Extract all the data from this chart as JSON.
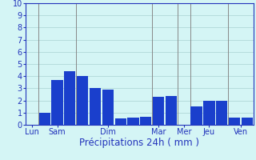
{
  "bars": [
    {
      "day": "Lun",
      "slot": 0,
      "height": 0.0
    },
    {
      "day": "Sam",
      "slot": 1,
      "height": 1.0
    },
    {
      "day": "Sam",
      "slot": 2,
      "height": 3.7
    },
    {
      "day": "Sam",
      "slot": 3,
      "height": 4.4
    },
    {
      "day": "Dim",
      "slot": 4,
      "height": 4.0
    },
    {
      "day": "Dim",
      "slot": 5,
      "height": 3.0
    },
    {
      "day": "Dim",
      "slot": 6,
      "height": 2.9
    },
    {
      "day": "Dim",
      "slot": 7,
      "height": 0.55
    },
    {
      "day": "Dim",
      "slot": 8,
      "height": 0.6
    },
    {
      "day": "Dim",
      "slot": 9,
      "height": 0.65
    },
    {
      "day": "Mar",
      "slot": 10,
      "height": 2.3
    },
    {
      "day": "Mar",
      "slot": 11,
      "height": 2.4
    },
    {
      "day": "Mer",
      "slot": 12,
      "height": 0.0
    },
    {
      "day": "Jeu",
      "slot": 13,
      "height": 1.5
    },
    {
      "day": "Jeu",
      "slot": 14,
      "height": 2.0
    },
    {
      "day": "Jeu",
      "slot": 15,
      "height": 2.0
    },
    {
      "day": "Ven",
      "slot": 16,
      "height": 0.6
    },
    {
      "day": "Ven",
      "slot": 17,
      "height": 0.6
    }
  ],
  "num_slots": 18,
  "day_tick_positions": [
    0,
    2,
    6,
    10,
    12,
    14,
    16.5
  ],
  "day_labels": [
    "Lun",
    "Sam",
    "Dim",
    "Mar",
    "Mer",
    "Jeu",
    "Ven"
  ],
  "day_dividers_x": [
    0.5,
    3.5,
    9.5,
    11.5,
    12.5,
    15.5
  ],
  "bar_color": "#1a3fcc",
  "bar_width": 0.9,
  "background_color": "#d4f5f5",
  "grid_color": "#b0d8d8",
  "divider_color": "#888888",
  "axis_color": "#2233bb",
  "tick_color": "#2233bb",
  "xlabel": "Précipitations 24h ( mm )",
  "xlabel_color": "#2233bb",
  "xlabel_fontsize": 8.5,
  "ylim": [
    0,
    10
  ],
  "yticks": [
    0,
    1,
    2,
    3,
    4,
    5,
    6,
    7,
    8,
    9,
    10
  ],
  "ytick_fontsize": 7,
  "xtick_fontsize": 7,
  "border_color": "#2233bb",
  "xlim": [
    -0.5,
    17.5
  ]
}
